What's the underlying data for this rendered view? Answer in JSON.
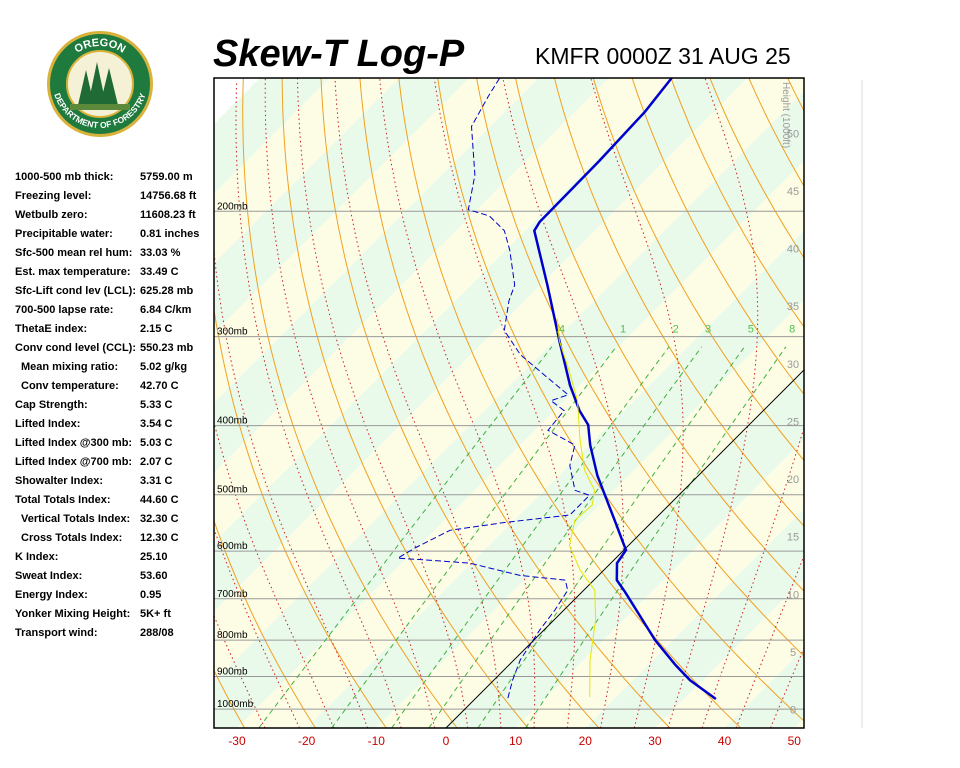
{
  "header": {
    "title": "Skew-T Log-P",
    "subtitle": "KMFR 0000Z 31 AUG 25"
  },
  "logo": {
    "top": "OREGON",
    "bottom": "DEPARTMENT OF FORESTRY"
  },
  "indices": [
    {
      "label": "1000-500 mb thick:",
      "value": "5759.00 m"
    },
    {
      "label": "Freezing level:",
      "value": "14756.68 ft"
    },
    {
      "label": "Wetbulb zero:",
      "value": "11608.23 ft"
    },
    {
      "label": "Precipitable water:",
      "value": "0.81 inches"
    },
    {
      "label": "Sfc-500 mean rel hum:",
      "value": "33.03 %"
    },
    {
      "label": "Est. max temperature:",
      "value": "33.49 C"
    },
    {
      "label": "Sfc-Lift cond lev (LCL):",
      "value": "625.28 mb"
    },
    {
      "label": "700-500 lapse rate:",
      "value": "6.84 C/km"
    },
    {
      "label": "ThetaE index:",
      "value": "2.15 C"
    },
    {
      "label": "Conv cond level (CCL):",
      "value": "550.23 mb"
    },
    {
      "label": "Mean mixing ratio:",
      "value": "5.02 g/kg",
      "indent": true
    },
    {
      "label": "Conv temperature:",
      "value": "42.70 C",
      "indent": true
    },
    {
      "label": "Cap Strength:",
      "value": "5.33 C"
    },
    {
      "label": "Lifted Index:",
      "value": "3.54 C"
    },
    {
      "label": "Lifted Index @300 mb:",
      "value": "5.03 C"
    },
    {
      "label": "Lifted Index @700 mb:",
      "value": "2.07 C"
    },
    {
      "label": "Showalter Index:",
      "value": "3.31 C"
    },
    {
      "label": "Total Totals Index:",
      "value": "44.60 C"
    },
    {
      "label": "Vertical Totals Index:",
      "value": "32.30 C",
      "indent": true
    },
    {
      "label": "Cross Totals Index:",
      "value": "12.30 C",
      "indent": true
    },
    {
      "label": "K Index:",
      "value": "25.10"
    },
    {
      "label": "Sweat Index:",
      "value": "53.60"
    },
    {
      "label": "Energy Index:",
      "value": "0.95"
    },
    {
      "label": "Yonker Mixing Height:",
      "value": "5K+ ft"
    },
    {
      "label": "Transport wind:",
      "value": "288/08"
    }
  ],
  "chart_data": {
    "type": "skew-t",
    "xlim": [
      -33.3,
      51.4
    ],
    "xticks": [
      -30,
      -20,
      -10,
      0,
      10,
      20,
      30,
      40,
      50
    ],
    "ylim": [
      1063,
      130
    ],
    "yticks": [
      {
        "value": 1000,
        "label": "1000mb"
      },
      {
        "value": 900,
        "label": "900mb"
      },
      {
        "value": 800,
        "label": "800mb"
      },
      {
        "value": 700,
        "label": "700mb"
      },
      {
        "value": 600,
        "label": "600mb"
      },
      {
        "value": 500,
        "label": "500mb"
      },
      {
        "value": 400,
        "label": "400mb"
      },
      {
        "value": 300,
        "label": "300mb"
      },
      {
        "value": 200,
        "label": "200mb"
      }
    ],
    "height_label": "Height (1000ft)",
    "hlim": [
      -1.6,
      54.8
    ],
    "hticks": [
      0,
      5,
      10,
      15,
      20,
      25,
      30,
      35,
      40,
      45,
      50
    ],
    "mixing_ratios": [
      {
        "value": 0.4,
        "label": ".4"
      },
      1,
      2,
      3,
      5,
      8
    ],
    "series": [
      {
        "color": "#0000cc",
        "width": 2.5,
        "dashed": false,
        "pressure": [
          968,
          911,
          867,
          800,
          685,
          659,
          624,
          598,
          579,
          552,
          509,
          470,
          426,
          399,
          381,
          351,
          304,
          254,
          213,
          207,
          170,
          145,
          130
        ],
        "values": [
          34.6,
          28.2,
          23.9,
          17.4,
          6.2,
          3.3,
          0.9,
          0.3,
          -1.7,
          -4.6,
          -9.6,
          -14.5,
          -19.9,
          -23.1,
          -26.4,
          -31.4,
          -39.3,
          -49.0,
          -58.7,
          -59.2,
          -59.4,
          -59.9,
          -60.9
        ]
      },
      {
        "color": "#0000cc",
        "width": 1,
        "dashed": true,
        "pressure": [
          965,
          911,
          853,
          775,
          726,
          681,
          659,
          649,
          624,
          618,
          614,
          594,
          561,
          547,
          534,
          501,
          493,
          455,
          426,
          406,
          381,
          369,
          362,
          345,
          318,
          294,
          267,
          254,
          227,
          213,
          203,
          199,
          178,
          152,
          138,
          130
        ],
        "values": [
          4.6,
          2.7,
          0.9,
          -0.6,
          -1.3,
          -2.3,
          -4.1,
          -11.3,
          -20.2,
          -26.4,
          -31.3,
          -30.3,
          -27.8,
          -21.1,
          -12.8,
          -12.8,
          -15.6,
          -19.9,
          -22.1,
          -28.1,
          -28.6,
          -31.9,
          -30.3,
          -35.0,
          -42.9,
          -48.7,
          -52.3,
          -53.7,
          -59.4,
          -63.0,
          -67.3,
          -71.2,
          -75.2,
          -82.7,
          -84.6,
          -85.6
        ]
      },
      {
        "color": "#e6e600",
        "width": 1,
        "dashed": false,
        "pressure": [
          962,
          853,
          750,
          681,
          638,
          589,
          543,
          517,
          493,
          462,
          419,
          369,
          335,
          304,
          283
        ],
        "values": [
          16.2,
          10.9,
          6.0,
          1.6,
          -3.4,
          -8.5,
          -11.3,
          -11.0,
          -12.8,
          -17.1,
          -22.1,
          -28.1,
          -33.6,
          -39.3,
          -42.8
        ]
      }
    ]
  }
}
